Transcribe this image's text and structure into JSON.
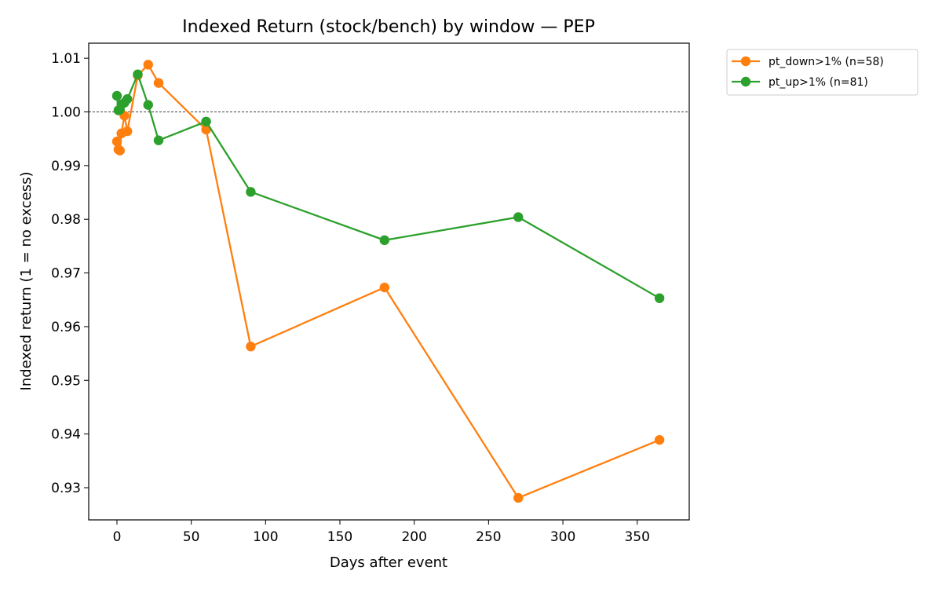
{
  "chart_data": {
    "type": "line",
    "title": "Indexed Return (stock/bench) by window — PEP",
    "xlabel": "Days after event",
    "ylabel": "Indexed return (1 = no excess)",
    "xlim": [
      -19,
      385
    ],
    "ylim": [
      0.924,
      1.0128
    ],
    "x_ticks": [
      0,
      50,
      100,
      150,
      200,
      250,
      300,
      350
    ],
    "y_ticks": [
      0.93,
      0.94,
      0.95,
      0.96,
      0.97,
      0.98,
      0.99,
      1.0,
      1.01
    ],
    "y_tick_labels": [
      "0.93",
      "0.94",
      "0.95",
      "0.96",
      "0.97",
      "0.98",
      "0.99",
      "1.00",
      "1.01"
    ],
    "reference_line": 1.0,
    "grid": false,
    "legend_position": "outside-top-right",
    "series": [
      {
        "name": "pt_down>1% (n=58)",
        "color": "#ff7f0e",
        "x": [
          0,
          1,
          2,
          3,
          5,
          7,
          14,
          21,
          28,
          60,
          90,
          180,
          270,
          365
        ],
        "y": [
          0.9945,
          0.993,
          0.9928,
          0.996,
          0.9993,
          0.9964,
          1.0068,
          1.0088,
          1.0054,
          0.9967,
          0.9563,
          0.9673,
          0.9281,
          0.9389
        ]
      },
      {
        "name": "pt_up>1% (n=81)",
        "color": "#2ca02c",
        "x": [
          0,
          1,
          2,
          3,
          5,
          7,
          14,
          21,
          28,
          60,
          90,
          180,
          270,
          365
        ],
        "y": [
          1.003,
          1.0003,
          1.0004,
          1.0014,
          1.0017,
          1.0024,
          1.007,
          1.0013,
          0.9947,
          0.9982,
          0.9851,
          0.9761,
          0.9804,
          0.9653
        ]
      }
    ]
  }
}
